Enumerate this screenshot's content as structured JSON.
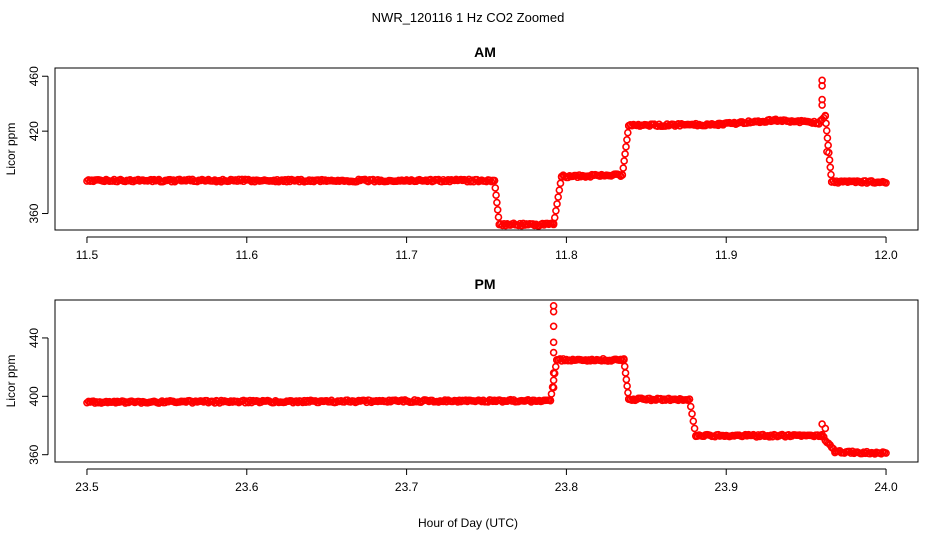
{
  "figure": {
    "title": "NWR_120116  1 Hz CO2 Zoomed",
    "xlabel": "Hour of Day (UTC)"
  },
  "chart_data": [
    {
      "type": "scatter",
      "title": "AM",
      "xlabel": "",
      "ylabel": "Licor ppm",
      "xlim": [
        11.5,
        12.0
      ],
      "ylim": [
        348,
        466
      ],
      "xticks": [
        11.5,
        11.6,
        11.7,
        11.8,
        11.9,
        12.0
      ],
      "xtick_labels": [
        "11.5",
        "11.6",
        "11.7",
        "11.8",
        "11.9",
        "12.0"
      ],
      "yticks": [
        360,
        420,
        460
      ],
      "ytick_labels": [
        "360",
        "420",
        "460"
      ],
      "marker": "open-circle",
      "color": "#ff0000",
      "series": [
        {
          "segments": [
            {
              "x0": 11.5,
              "x1": 11.755,
              "y0": 384,
              "y1": 384
            },
            {
              "x0": 11.755,
              "x1": 11.758,
              "y0": 384,
              "y1": 352
            },
            {
              "x0": 11.758,
              "x1": 11.792,
              "y0": 352,
              "y1": 352
            },
            {
              "x0": 11.792,
              "x1": 11.797,
              "y0": 352,
              "y1": 387
            },
            {
              "x0": 11.797,
              "x1": 11.835,
              "y0": 387,
              "y1": 388
            },
            {
              "x0": 11.835,
              "x1": 11.839,
              "y0": 388,
              "y1": 424
            },
            {
              "x0": 11.839,
              "x1": 11.895,
              "y0": 424,
              "y1": 425
            },
            {
              "x0": 11.895,
              "x1": 11.93,
              "y0": 425,
              "y1": 428
            },
            {
              "x0": 11.93,
              "x1": 11.958,
              "y0": 428,
              "y1": 426
            },
            {
              "x0": 11.958,
              "x1": 11.962,
              "y0": 426,
              "y1": 431
            },
            {
              "x0": 11.962,
              "x1": 11.966,
              "y0": 431,
              "y1": 383
            },
            {
              "x0": 11.966,
              "x1": 12.0,
              "y0": 383,
              "y1": 383
            }
          ],
          "spikes": [
            {
              "x": 11.96,
              "y": 457
            },
            {
              "x": 11.96,
              "y": 453
            },
            {
              "x": 11.96,
              "y": 443
            },
            {
              "x": 11.96,
              "y": 439
            },
            {
              "x": 11.963,
              "y": 405
            }
          ]
        }
      ]
    },
    {
      "type": "scatter",
      "title": "PM",
      "xlabel": "",
      "ylabel": "Licor ppm",
      "xlim": [
        23.5,
        24.0
      ],
      "ylim": [
        355,
        466
      ],
      "xticks": [
        23.5,
        23.6,
        23.7,
        23.8,
        23.9,
        24.0
      ],
      "xtick_labels": [
        "23.5",
        "23.6",
        "23.7",
        "23.8",
        "23.9",
        "24.0"
      ],
      "yticks": [
        360,
        400,
        440
      ],
      "ytick_labels": [
        "360",
        "400",
        "440"
      ],
      "marker": "open-circle",
      "color": "#ff0000",
      "series": [
        {
          "segments": [
            {
              "x0": 23.5,
              "x1": 23.79,
              "y0": 396,
              "y1": 397
            },
            {
              "x0": 23.79,
              "x1": 23.794,
              "y0": 397,
              "y1": 425
            },
            {
              "x0": 23.794,
              "x1": 23.836,
              "y0": 425,
              "y1": 425
            },
            {
              "x0": 23.836,
              "x1": 23.839,
              "y0": 425,
              "y1": 398
            },
            {
              "x0": 23.839,
              "x1": 23.877,
              "y0": 398,
              "y1": 398
            },
            {
              "x0": 23.877,
              "x1": 23.881,
              "y0": 398,
              "y1": 373
            },
            {
              "x0": 23.881,
              "x1": 23.96,
              "y0": 373,
              "y1": 373
            },
            {
              "x0": 23.96,
              "x1": 23.968,
              "y0": 373,
              "y1": 362
            },
            {
              "x0": 23.968,
              "x1": 24.0,
              "y0": 362,
              "y1": 361
            }
          ],
          "spikes": [
            {
              "x": 23.792,
              "y": 462
            },
            {
              "x": 23.792,
              "y": 458
            },
            {
              "x": 23.792,
              "y": 448
            },
            {
              "x": 23.792,
              "y": 437
            },
            {
              "x": 23.792,
              "y": 430
            },
            {
              "x": 23.792,
              "y": 416
            },
            {
              "x": 23.792,
              "y": 406
            },
            {
              "x": 23.96,
              "y": 381
            },
            {
              "x": 23.962,
              "y": 378
            }
          ]
        }
      ]
    }
  ]
}
